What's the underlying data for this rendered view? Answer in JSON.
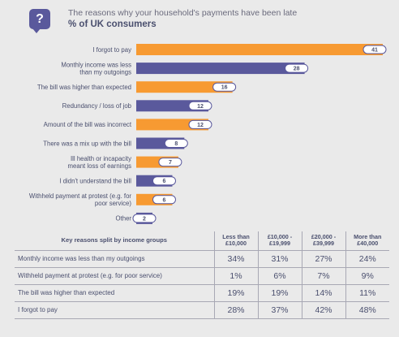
{
  "header": {
    "icon": "question-icon",
    "icon_glyph": "?",
    "subtitle": "The reasons why your household's payments have been late",
    "title": "% of UK consumers"
  },
  "colors": {
    "orange": "#f79a32",
    "purple": "#5a599c",
    "text": "#4a4f6e"
  },
  "chart_data": {
    "type": "bar",
    "orientation": "horizontal",
    "categories": [
      "I forgot to pay",
      "Monthly income was less than my outgoings",
      "The bill was higher than expected",
      "Redundancy / loss of job",
      "Amount of the bill was incorrect",
      "There was a mix up with the bill",
      "Ill health or incapacity meant loss of earnings",
      "I didn't understand the bill",
      "Withheld payment at protest (e.g. for poor service)",
      "Other"
    ],
    "category_lines": [
      [
        "I forgot to pay"
      ],
      [
        "Monthly income was less",
        "than my outgoings"
      ],
      [
        "The bill was higher than expected"
      ],
      [
        "Redundancy / loss of job"
      ],
      [
        "Amount of the bill was incorrect"
      ],
      [
        "There was a mix up with the bill"
      ],
      [
        "Ill health or incapacity",
        "meant loss of earnings"
      ],
      [
        "I didn't understand the bill"
      ],
      [
        "Withheld payment at protest (e.g. for",
        "poor service)"
      ],
      [
        "Other"
      ]
    ],
    "values": [
      41,
      28,
      16,
      12,
      12,
      8,
      7,
      6,
      6,
      2
    ],
    "bar_colors": [
      "orange",
      "purple",
      "orange",
      "purple",
      "orange",
      "purple",
      "orange",
      "purple",
      "orange",
      "purple"
    ],
    "xlim": [
      0,
      41
    ],
    "grid": false,
    "legend": "none"
  },
  "table": {
    "title": "Key reasons split by income groups",
    "columns": [
      [
        "Less than",
        "£10,000"
      ],
      [
        "£10,000 -",
        "£19,999"
      ],
      [
        "£20,000 -",
        "£39,999"
      ],
      [
        "More than",
        "£40,000"
      ]
    ],
    "rows": [
      {
        "label": "Monthly income was less than my outgoings",
        "values": [
          "34%",
          "31%",
          "27%",
          "24%"
        ]
      },
      {
        "label": "Withheld payment at protest (e.g. for poor service)",
        "values": [
          "1%",
          "6%",
          "7%",
          "9%"
        ]
      },
      {
        "label": "The bill was higher than expected",
        "values": [
          "19%",
          "19%",
          "14%",
          "11%"
        ]
      },
      {
        "label": "I forgot to pay",
        "values": [
          "28%",
          "37%",
          "42%",
          "48%"
        ]
      }
    ]
  }
}
